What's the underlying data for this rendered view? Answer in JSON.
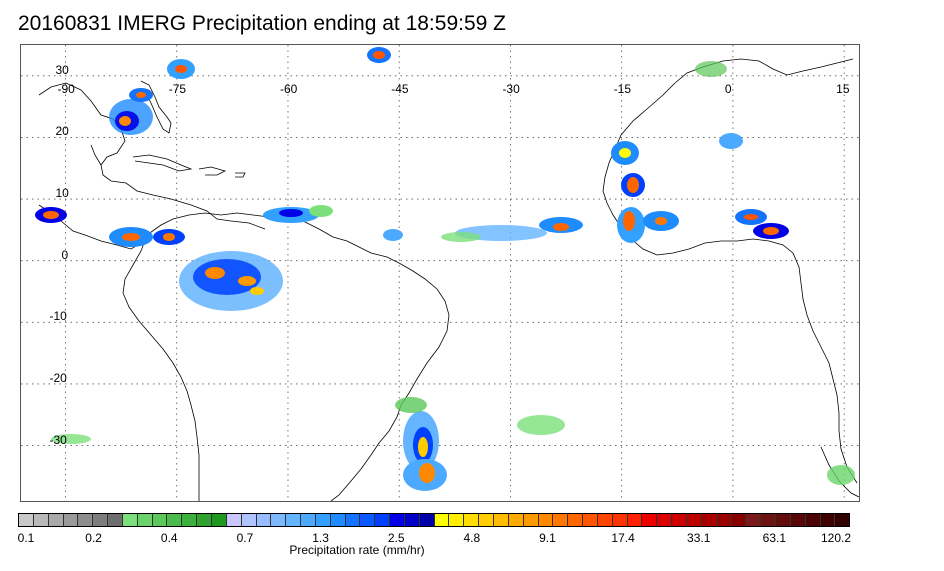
{
  "title": "20160831 IMERG Precipitation ending at 18:59:59 Z",
  "map": {
    "lon_range": [
      -96,
      17
    ],
    "lat_range": [
      -39,
      35
    ],
    "grid_lons": [
      -90,
      -75,
      -60,
      -45,
      -30,
      -15,
      0,
      15
    ],
    "grid_lats": [
      30,
      20,
      10,
      0,
      -10,
      -20,
      -30
    ],
    "lon_labels": [
      "-90",
      "-75",
      "-60",
      "-45",
      "-30",
      "-15",
      "0",
      "15"
    ],
    "lat_labels": [
      "30",
      "20",
      "10",
      "0",
      "-10",
      "-20",
      "-30"
    ],
    "grid": true,
    "coastline_color": "#000000"
  },
  "colorbar": {
    "title": "Precipitation rate (mm/hr)",
    "tick_labels": [
      "0.1",
      "0.2",
      "0.4",
      "0.7",
      "1.3",
      "2.5",
      "4.8",
      "9.1",
      "17.4",
      "33.1",
      "63.1",
      "120.2"
    ],
    "colors": [
      "#c8c8c8",
      "#b9b9b9",
      "#aaaaaa",
      "#9b9b9b",
      "#8c8c8c",
      "#7d7d7d",
      "#6e6e6e",
      "#7be07b",
      "#6ad46a",
      "#5ac85a",
      "#4bbc4b",
      "#3cb03c",
      "#2ea42e",
      "#1f981f",
      "#c8c8ff",
      "#afc3ff",
      "#96beff",
      "#7db9ff",
      "#64b4ff",
      "#4baaff",
      "#32a0ff",
      "#1e8cff",
      "#1473ff",
      "#0a5aff",
      "#0041ff",
      "#0000e6",
      "#0000c8",
      "#0000aa",
      "#ffff00",
      "#ffee00",
      "#ffdd00",
      "#ffcc00",
      "#ffbb00",
      "#ffaa00",
      "#ff9900",
      "#ff8800",
      "#ff7700",
      "#ff6600",
      "#ff5500",
      "#ff4400",
      "#ff3300",
      "#ff2200",
      "#ee0000",
      "#dd0000",
      "#cc0000",
      "#bb0000",
      "#aa0000",
      "#990000",
      "#880000",
      "#7a1a1a",
      "#6e1212",
      "#620c0c",
      "#560808",
      "#4a0404",
      "#3e0000",
      "#320000"
    ]
  }
}
